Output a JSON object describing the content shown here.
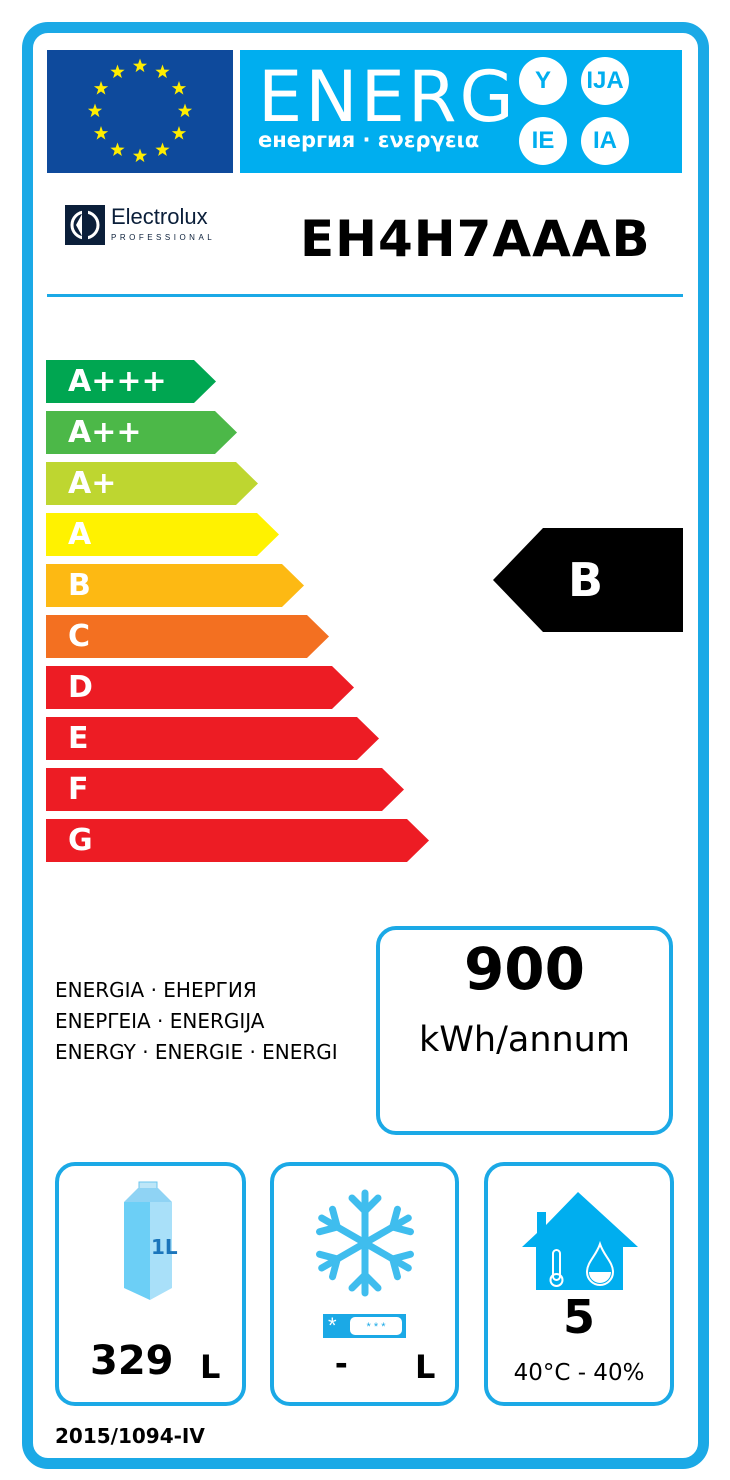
{
  "header": {
    "title": "ENERG",
    "suffixes": [
      "Y",
      "IJA",
      "IE",
      "IA"
    ],
    "subtitle": "енергия · ενεργεια"
  },
  "brand": {
    "name": "Electrolux",
    "tagline": "PROFESSIONAL"
  },
  "model": "EH4H7AAAB",
  "scale": [
    {
      "label": "A+++",
      "color": "#00a651"
    },
    {
      "label": "A++",
      "color": "#4cb848"
    },
    {
      "label": "A+",
      "color": "#bed630"
    },
    {
      "label": "A",
      "color": "#fff200"
    },
    {
      "label": "B",
      "color": "#fdb913"
    },
    {
      "label": "C",
      "color": "#f37021"
    },
    {
      "label": "D",
      "color": "#ed1c24"
    },
    {
      "label": "E",
      "color": "#ed1c24"
    },
    {
      "label": "F",
      "color": "#ed1c24"
    },
    {
      "label": "G",
      "color": "#ed1c24"
    }
  ],
  "rating": "B",
  "energy": {
    "lines": [
      "ENERGIA · ЕНЕРГИЯ",
      "ΕΝΕΡΓΕΙΑ · ENERGIJA",
      "ENERGY · ENERGIE · ENERGI"
    ],
    "value": "900",
    "unit": "kWh/annum"
  },
  "volumes": {
    "chilled_value": "329",
    "chilled_unit": "L",
    "carton_label": "1L",
    "frozen_value": "-",
    "frozen_unit": "L"
  },
  "climate": {
    "class": "5",
    "conditions": "40°C - 40%"
  },
  "regulation": "2015/1094-IV",
  "colors": {
    "accent": "#1ba9e6",
    "band": "#00aeef",
    "flag": "#0e4a9c"
  }
}
